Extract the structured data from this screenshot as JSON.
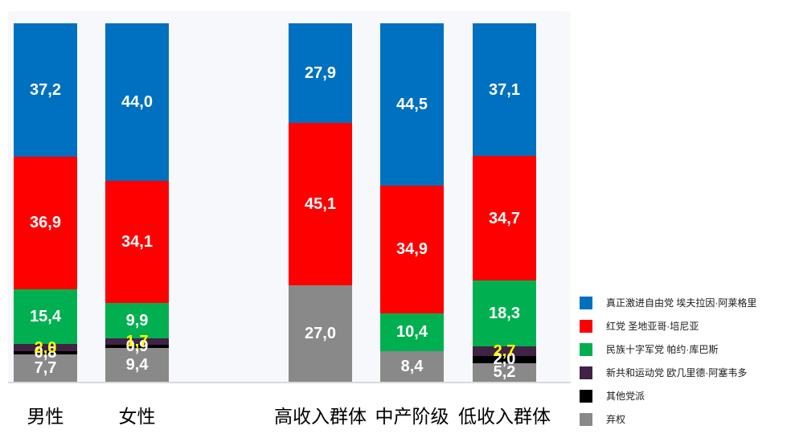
{
  "chart_data": {
    "type": "bar",
    "variant": "stacked-100-percent",
    "unit": "percent",
    "decimal_separator": ",",
    "title": "",
    "xlabel": "",
    "ylabel": "",
    "ylim": [
      0,
      100
    ],
    "grid": false,
    "legend_position": "right",
    "categories": [
      "男性",
      "女性",
      "高收入群体",
      "中产阶级",
      "低收入群体"
    ],
    "series": [
      {
        "name": "真正激进自由党 埃夫拉因·阿莱格里",
        "color": "#0070C0",
        "label_color": "#ffffff",
        "values": [
          37.2,
          44.0,
          27.9,
          44.5,
          37.1
        ]
      },
      {
        "name": "红党 圣地亚哥·培尼亚",
        "color": "#FE0000",
        "label_color": "#ffffff",
        "values": [
          36.9,
          34.1,
          45.1,
          34.9,
          34.7
        ]
      },
      {
        "name": "民族十字军党 帕约·库巴斯",
        "color": "#00B050",
        "label_color": "#ffffff",
        "values": [
          15.4,
          9.9,
          0,
          10.4,
          18.3
        ]
      },
      {
        "name": "新共和运动党 欧几里德·阿塞韦多",
        "color": "#402345",
        "label_color": "#FFFF00",
        "values": [
          2.0,
          1.7,
          0,
          0,
          2.7
        ]
      },
      {
        "name": "其他党派",
        "color": "#000000",
        "label_color": "#ffffff",
        "values": [
          0.8,
          0.9,
          0,
          0,
          2.0
        ]
      },
      {
        "name": "弃权",
        "color": "#898989",
        "label_color": "#ffffff",
        "values": [
          7.7,
          9.4,
          27.0,
          8.4,
          5.2
        ]
      }
    ],
    "colors": {
      "plot_background": "#f6f8fb",
      "axis_line": "#d9d9d9",
      "category_label": "#000000",
      "legend_text": "#1a1a1a"
    }
  }
}
